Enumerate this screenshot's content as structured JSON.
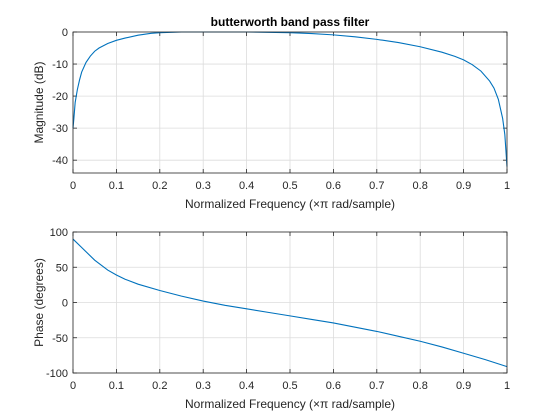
{
  "chart_data": [
    {
      "type": "line",
      "title": "butterworth band pass filter",
      "xlabel": "Normalized Frequency  (×π rad/sample)",
      "ylabel": "Magnitude (dB)",
      "xlim": [
        0,
        1
      ],
      "ylim": [
        -44,
        0
      ],
      "xticks": [
        0,
        0.1,
        0.2,
        0.3,
        0.4,
        0.5,
        0.6,
        0.7,
        0.8,
        0.9,
        1
      ],
      "xtick_labels": [
        "0",
        "0.1",
        "0.2",
        "0.3",
        "0.4",
        "0.5",
        "0.6",
        "0.7",
        "0.8",
        "0.9",
        "1"
      ],
      "yticks": [
        -40,
        -30,
        -20,
        -10,
        0
      ],
      "ytick_labels": [
        "-40",
        "-30",
        "-20",
        "-10",
        "0"
      ],
      "grid": true,
      "series": [
        {
          "color": "#0072bd",
          "x": [
            0.0,
            0.002,
            0.005,
            0.01,
            0.015,
            0.02,
            0.03,
            0.04,
            0.05,
            0.06,
            0.08,
            0.1,
            0.12,
            0.15,
            0.18,
            0.2,
            0.25,
            0.3,
            0.35,
            0.4,
            0.45,
            0.5,
            0.55,
            0.6,
            0.65,
            0.7,
            0.75,
            0.8,
            0.85,
            0.88,
            0.9,
            0.92,
            0.94,
            0.96,
            0.97,
            0.98,
            0.99,
            0.995,
            1.0
          ],
          "y": [
            -30,
            -27,
            -22,
            -18,
            -15,
            -12.5,
            -9.5,
            -7.5,
            -6,
            -5,
            -3.6,
            -2.6,
            -1.9,
            -1.0,
            -0.4,
            -0.2,
            0,
            0,
            0,
            0,
            -0.1,
            -0.2,
            -0.5,
            -0.9,
            -1.5,
            -2.3,
            -3.3,
            -4.6,
            -6.3,
            -7.6,
            -8.7,
            -10.2,
            -12.2,
            -15.3,
            -17.5,
            -21,
            -27,
            -32,
            -42
          ]
        }
      ]
    },
    {
      "type": "line",
      "title": "",
      "xlabel": "Normalized Frequency  (×π rad/sample)",
      "ylabel": "Phase (degrees)",
      "xlim": [
        0,
        1
      ],
      "ylim": [
        -100,
        100
      ],
      "xticks": [
        0,
        0.1,
        0.2,
        0.3,
        0.4,
        0.5,
        0.6,
        0.7,
        0.8,
        0.9,
        1
      ],
      "xtick_labels": [
        "0",
        "0.1",
        "0.2",
        "0.3",
        "0.4",
        "0.5",
        "0.6",
        "0.7",
        "0.8",
        "0.9",
        "1"
      ],
      "yticks": [
        -100,
        -50,
        0,
        50,
        100
      ],
      "ytick_labels": [
        "-100",
        "-50",
        "0",
        "50",
        "100"
      ],
      "grid": true,
      "series": [
        {
          "color": "#0072bd",
          "x": [
            0.0,
            0.02,
            0.05,
            0.08,
            0.1,
            0.12,
            0.15,
            0.2,
            0.25,
            0.3,
            0.35,
            0.4,
            0.45,
            0.5,
            0.55,
            0.6,
            0.65,
            0.7,
            0.75,
            0.8,
            0.85,
            0.9,
            0.95,
            1.0
          ],
          "y": [
            90,
            78,
            60,
            46,
            39,
            33,
            26,
            17,
            9,
            2,
            -4,
            -9,
            -14,
            -19,
            -24,
            -29,
            -35,
            -41,
            -48,
            -55,
            -63,
            -72,
            -81,
            -91
          ]
        }
      ]
    }
  ]
}
